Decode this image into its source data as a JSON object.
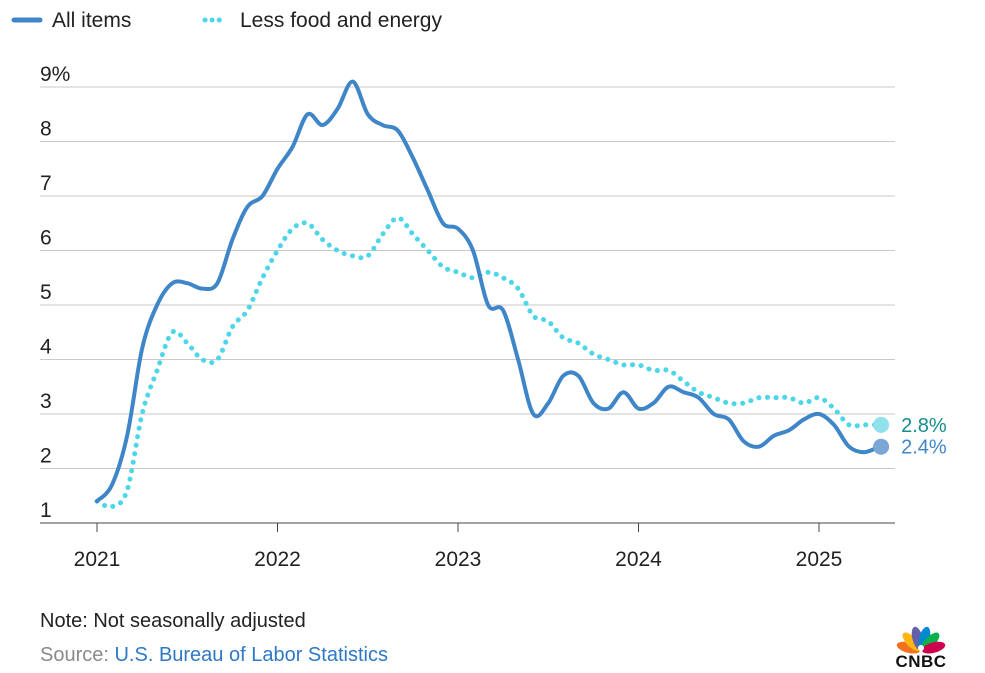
{
  "chart_data": {
    "type": "line",
    "legend": [
      {
        "name": "All items",
        "style": "solid",
        "color": "#3f86c8"
      },
      {
        "name": "Less food and energy",
        "style": "dotted",
        "color": "#4dd6e8"
      }
    ],
    "y_ticks": [
      "9%",
      "8",
      "7",
      "6",
      "5",
      "4",
      "3",
      "2",
      "1"
    ],
    "y_tick_values": [
      9,
      8,
      7,
      6,
      5,
      4,
      3,
      2,
      1
    ],
    "x_ticks": [
      "2021",
      "2022",
      "2023",
      "2024",
      "2025"
    ],
    "x_tick_values": [
      2021,
      2022,
      2023,
      2024,
      2025
    ],
    "ylim": [
      1,
      9
    ],
    "xlim": [
      2021,
      2025.45
    ],
    "series": [
      {
        "name": "All items",
        "color": "#3f86c8",
        "dashed": false,
        "x": [
          2021.0,
          2021.083,
          2021.167,
          2021.25,
          2021.333,
          2021.417,
          2021.5,
          2021.583,
          2021.667,
          2021.75,
          2021.833,
          2021.917,
          2022.0,
          2022.083,
          2022.167,
          2022.25,
          2022.333,
          2022.417,
          2022.5,
          2022.583,
          2022.667,
          2022.75,
          2022.833,
          2022.917,
          2023.0,
          2023.083,
          2023.167,
          2023.25,
          2023.333,
          2023.417,
          2023.5,
          2023.583,
          2023.667,
          2023.75,
          2023.833,
          2023.917,
          2024.0,
          2024.083,
          2024.167,
          2024.25,
          2024.333,
          2024.417,
          2024.5,
          2024.583,
          2024.667,
          2024.75,
          2024.833,
          2024.917,
          2025.0,
          2025.083,
          2025.167,
          2025.25,
          2025.333
        ],
        "values": [
          1.4,
          1.7,
          2.6,
          4.2,
          5.0,
          5.4,
          5.4,
          5.3,
          5.4,
          6.2,
          6.8,
          7.0,
          7.5,
          7.9,
          8.5,
          8.3,
          8.6,
          9.1,
          8.5,
          8.3,
          8.2,
          7.7,
          7.1,
          6.5,
          6.4,
          6.0,
          5.0,
          4.9,
          4.0,
          3.0,
          3.2,
          3.7,
          3.7,
          3.2,
          3.1,
          3.4,
          3.1,
          3.2,
          3.5,
          3.4,
          3.3,
          3.0,
          2.9,
          2.5,
          2.4,
          2.6,
          2.7,
          2.9,
          3.0,
          2.8,
          2.4,
          2.3,
          2.4
        ]
      },
      {
        "name": "Less food and energy",
        "color": "#4dd6e8",
        "dashed": true,
        "x": [
          2021.0,
          2021.083,
          2021.167,
          2021.25,
          2021.333,
          2021.417,
          2021.5,
          2021.583,
          2021.667,
          2021.75,
          2021.833,
          2021.917,
          2022.0,
          2022.083,
          2022.167,
          2022.25,
          2022.333,
          2022.417,
          2022.5,
          2022.583,
          2022.667,
          2022.75,
          2022.833,
          2022.917,
          2023.0,
          2023.083,
          2023.167,
          2023.25,
          2023.333,
          2023.417,
          2023.5,
          2023.583,
          2023.667,
          2023.75,
          2023.833,
          2023.917,
          2024.0,
          2024.083,
          2024.167,
          2024.25,
          2024.333,
          2024.417,
          2024.5,
          2024.583,
          2024.667,
          2024.75,
          2024.833,
          2024.917,
          2025.0,
          2025.083,
          2025.167,
          2025.25,
          2025.333
        ],
        "values": [
          1.4,
          1.3,
          1.6,
          3.0,
          3.8,
          4.5,
          4.3,
          4.0,
          4.0,
          4.6,
          4.9,
          5.5,
          6.0,
          6.4,
          6.5,
          6.2,
          6.0,
          5.9,
          5.9,
          6.3,
          6.6,
          6.3,
          6.0,
          5.7,
          5.6,
          5.5,
          5.6,
          5.5,
          5.3,
          4.8,
          4.7,
          4.4,
          4.3,
          4.1,
          4.0,
          3.9,
          3.9,
          3.8,
          3.8,
          3.6,
          3.4,
          3.3,
          3.2,
          3.2,
          3.3,
          3.3,
          3.3,
          3.2,
          3.3,
          3.1,
          2.8,
          2.8,
          2.8
        ]
      }
    ],
    "end_labels": [
      {
        "series": "Less food and energy",
        "text": "2.8%",
        "value": 2.8,
        "color": "#168c8c",
        "dot_color": "#8fe1ec"
      },
      {
        "series": "All items",
        "text": "2.4%",
        "value": 2.4,
        "color": "#3f86c8",
        "dot_color": "#7aa7d6"
      }
    ]
  },
  "footer": {
    "note": "Note: Not seasonally adjusted",
    "source_prefix": "Source: ",
    "source_link": "U.S. Bureau of Labor Statistics"
  },
  "brand": {
    "name": "CNBC",
    "peacock_colors": [
      "#f37021",
      "#fcb711",
      "#6460aa",
      "#0089d0",
      "#0db14b",
      "#cc004c"
    ]
  }
}
